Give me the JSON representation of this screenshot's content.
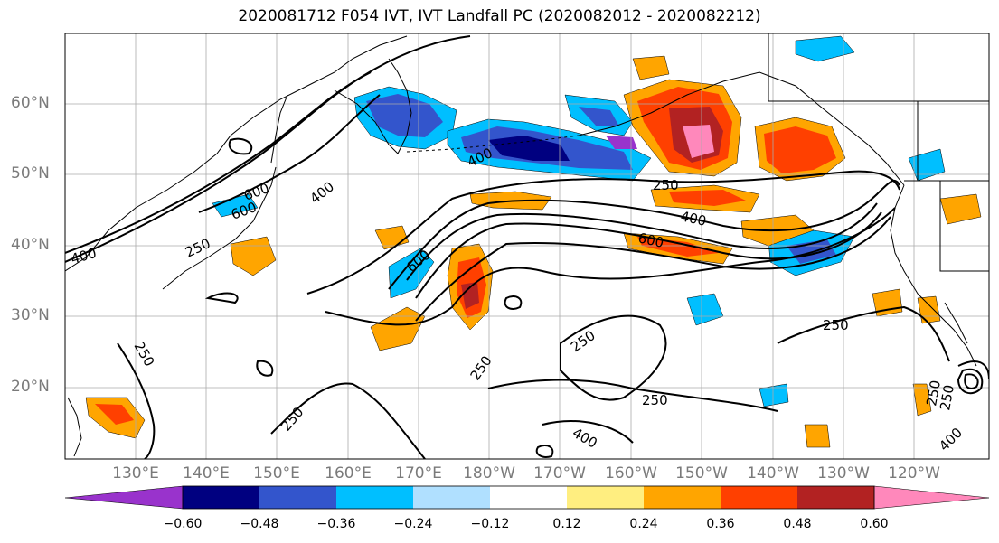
{
  "title": "2020081712 F054 IVT, IVT Landfall PC (2020082012 - 2020082212)",
  "lat_labels": [
    "60°N",
    "50°N",
    "40°N",
    "30°N",
    "20°N"
  ],
  "lon_labels": [
    "130°E",
    "140°E",
    "150°E",
    "160°E",
    "170°E",
    "180°W",
    "170°W",
    "160°W",
    "150°W",
    "140°W",
    "130°W",
    "120°W"
  ],
  "colorbar": {
    "colors": [
      "#9933cc",
      "#000080",
      "#3355cc",
      "#00bfff",
      "#b0e0ff",
      "#ffffff",
      "#ffee80",
      "#ffa500",
      "#ff4000",
      "#b22222",
      "#ff88bb"
    ],
    "tick_labels": [
      "−0.60",
      "−0.48",
      "−0.36",
      "−0.24",
      "−0.12",
      "0.12",
      "0.24",
      "0.36",
      "0.48",
      "0.60"
    ]
  },
  "contour_labels": [
    "600",
    "600",
    "400",
    "400",
    "250",
    "400",
    "250",
    "250",
    "600",
    "400",
    "250",
    "600",
    "250",
    "250",
    "250",
    "250",
    "250",
    "400",
    "250",
    "400"
  ]
}
